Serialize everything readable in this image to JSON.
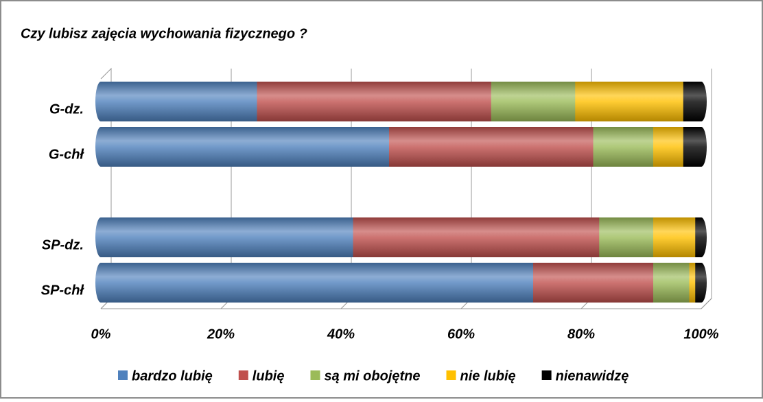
{
  "chart_data": {
    "type": "bar",
    "orientation": "horizontal",
    "stacked": true,
    "title": "Czy lubisz zajęcia wychowania fizycznego ?",
    "categories": [
      "G-dz.",
      "G-chł",
      null,
      "SP-dz.",
      "SP-chł"
    ],
    "series": [
      {
        "name": "bardzo lubię",
        "color": "#4f81bd",
        "values": [
          26,
          48,
          null,
          42,
          72
        ]
      },
      {
        "name": "lubię",
        "color": "#c0504d",
        "values": [
          39,
          34,
          null,
          41,
          20
        ]
      },
      {
        "name": "są mi obojętne",
        "color": "#9bbb59",
        "values": [
          14,
          10,
          null,
          9,
          6
        ]
      },
      {
        "name": "nie lubię",
        "color": "#ffc000",
        "values": [
          18,
          5,
          null,
          7,
          1
        ]
      },
      {
        "name": "nienawidzę",
        "color": "#000000",
        "values": [
          3,
          3,
          null,
          1,
          1
        ]
      }
    ],
    "xlim": [
      0,
      100
    ],
    "xticks": [
      {
        "value": 0,
        "label": "0%"
      },
      {
        "value": 20,
        "label": "20%"
      },
      {
        "value": 40,
        "label": "40%"
      },
      {
        "value": 60,
        "label": "60%"
      },
      {
        "value": 80,
        "label": "80%"
      },
      {
        "value": 100,
        "label": "100%"
      }
    ],
    "grid": true,
    "legend": "bottom"
  }
}
